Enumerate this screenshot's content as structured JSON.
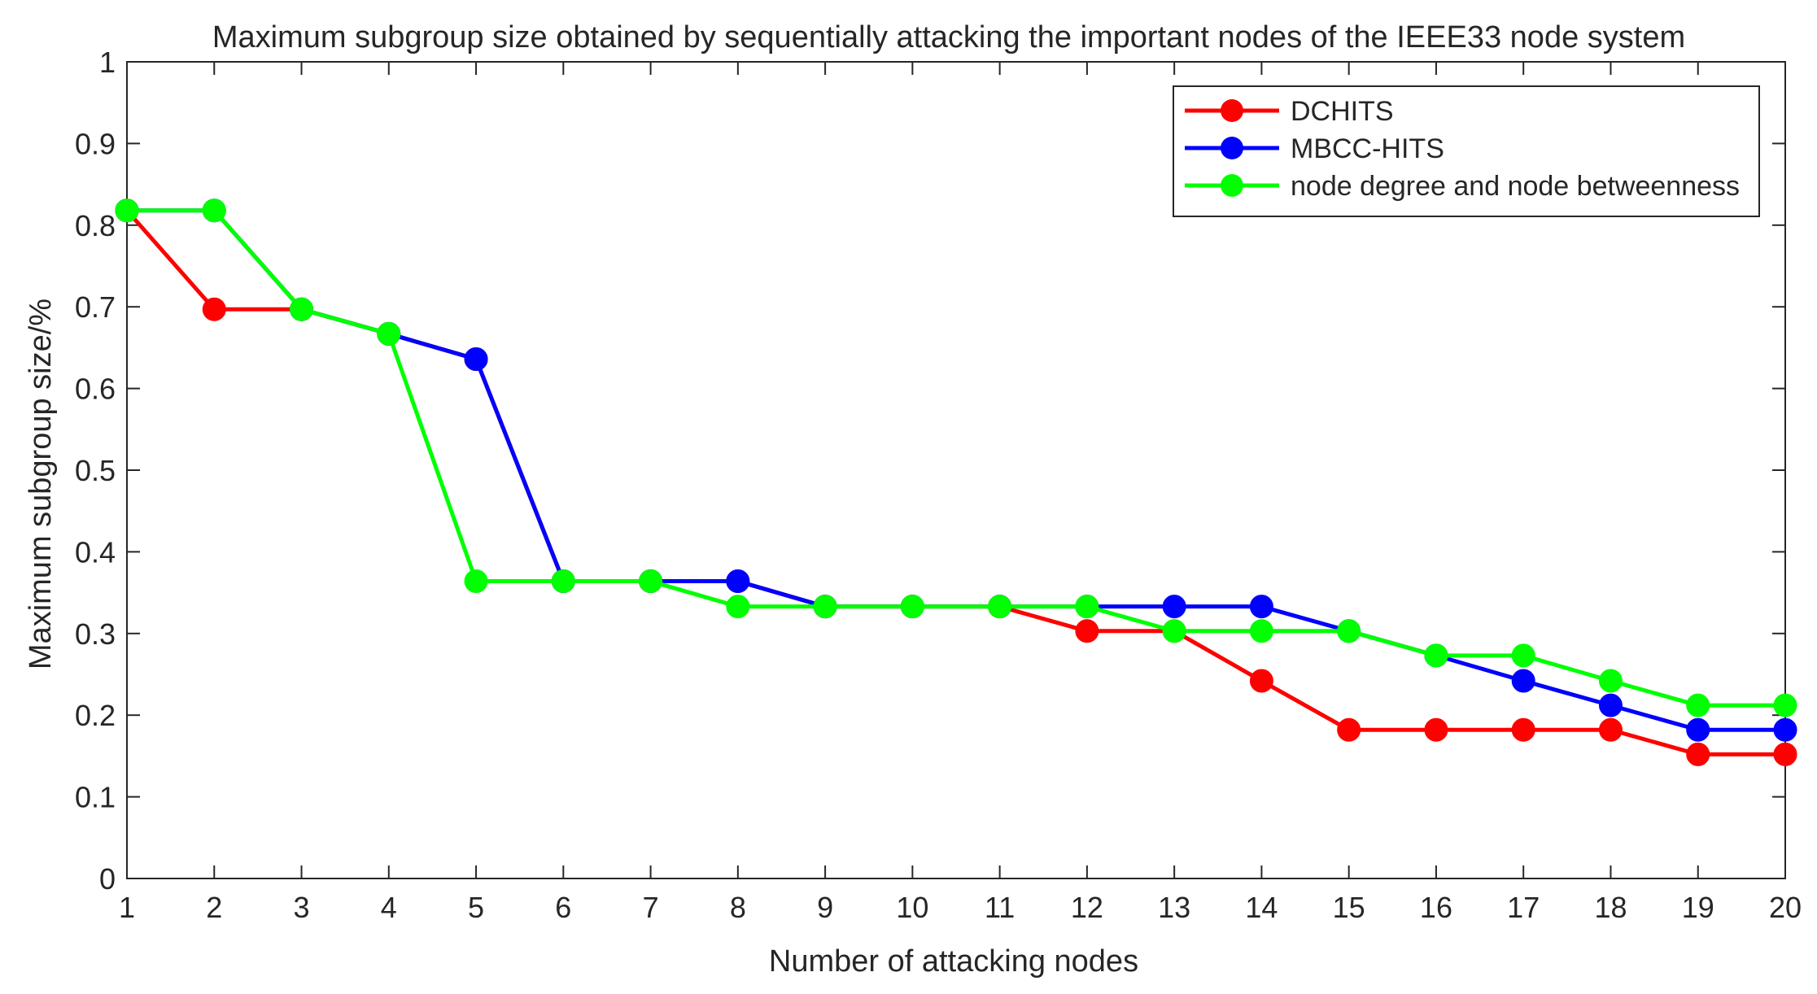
{
  "chart_data": {
    "type": "line",
    "title": "Maximum subgroup size obtained by sequentially attacking the important nodes of the IEEE33 node system",
    "xlabel": "Number of attacking nodes",
    "ylabel": "Maximum subgroup size/%",
    "x": [
      1,
      2,
      3,
      4,
      5,
      6,
      7,
      8,
      9,
      10,
      11,
      12,
      13,
      14,
      15,
      16,
      17,
      18,
      19,
      20
    ],
    "xlim": [
      1,
      20
    ],
    "ylim": [
      0,
      1
    ],
    "xticks": [
      "1",
      "2",
      "3",
      "4",
      "5",
      "6",
      "7",
      "8",
      "9",
      "10",
      "11",
      "12",
      "13",
      "14",
      "15",
      "16",
      "17",
      "18",
      "19",
      "20"
    ],
    "yticks": [
      "0",
      "0.1",
      "0.2",
      "0.3",
      "0.4",
      "0.5",
      "0.6",
      "0.7",
      "0.8",
      "0.9",
      "1"
    ],
    "grid": false,
    "legend_position": "top-right",
    "series": [
      {
        "name": "DCHITS",
        "color": "#ff0000",
        "values": [
          0.818,
          0.697,
          0.697,
          0.667,
          0.636,
          0.364,
          0.364,
          0.364,
          0.333,
          0.333,
          0.333,
          0.303,
          0.303,
          0.242,
          0.182,
          0.182,
          0.182,
          0.182,
          0.152,
          0.152
        ]
      },
      {
        "name": "MBCC-HITS",
        "color": "#0000ff",
        "values": [
          0.818,
          0.818,
          0.697,
          0.667,
          0.636,
          0.364,
          0.364,
          0.364,
          0.333,
          0.333,
          0.333,
          0.333,
          0.333,
          0.333,
          0.303,
          0.273,
          0.242,
          0.212,
          0.182,
          0.182
        ]
      },
      {
        "name": "node degree and node betweenness",
        "color": "#00ff00",
        "values": [
          0.818,
          0.818,
          0.697,
          0.667,
          0.364,
          0.364,
          0.364,
          0.333,
          0.333,
          0.333,
          0.333,
          0.333,
          0.303,
          0.303,
          0.303,
          0.273,
          0.273,
          0.242,
          0.212,
          0.212
        ]
      }
    ]
  }
}
